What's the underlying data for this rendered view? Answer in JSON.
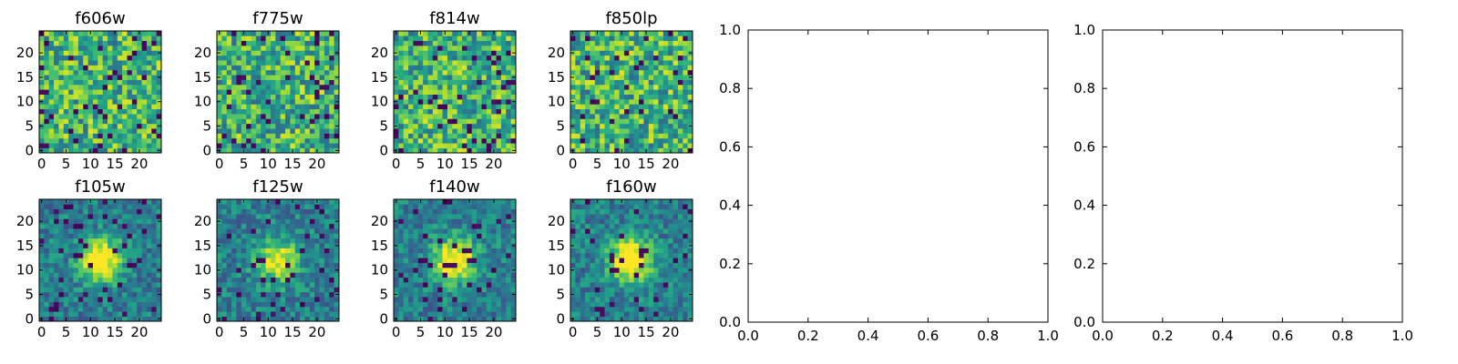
{
  "figure": {
    "colormap": "viridis",
    "colors": {
      "low": "#440154",
      "mid": "#21918c",
      "high": "#fde725",
      "axes_frame": "#000000",
      "background": "#ffffff"
    }
  },
  "chart_data": [
    {
      "type": "heatmap",
      "title": "f606w",
      "image_size": 25,
      "xticks": [
        "0",
        "5",
        "10",
        "15",
        "20"
      ],
      "yticks": [
        "0",
        "5",
        "10",
        "15",
        "20"
      ],
      "center_peak": 0.0,
      "noise_seed": 11
    },
    {
      "type": "heatmap",
      "title": "f775w",
      "image_size": 25,
      "xticks": [
        "0",
        "5",
        "10",
        "15",
        "20"
      ],
      "yticks": [
        "0",
        "5",
        "10",
        "15",
        "20"
      ],
      "center_peak": 0.0,
      "noise_seed": 23
    },
    {
      "type": "heatmap",
      "title": "f814w",
      "image_size": 25,
      "xticks": [
        "0",
        "5",
        "10",
        "15",
        "20"
      ],
      "yticks": [
        "0",
        "5",
        "10",
        "15",
        "20"
      ],
      "center_peak": 0.0,
      "noise_seed": 37
    },
    {
      "type": "heatmap",
      "title": "f850lp",
      "image_size": 25,
      "xticks": [
        "0",
        "5",
        "10",
        "15",
        "20"
      ],
      "yticks": [
        "0",
        "5",
        "10",
        "15",
        "20"
      ],
      "center_peak": 0.0,
      "noise_seed": 41
    },
    {
      "type": "heatmap",
      "title": "f105w",
      "image_size": 25,
      "xticks": [
        "0",
        "5",
        "10",
        "15",
        "20"
      ],
      "yticks": [
        "0",
        "5",
        "10",
        "15",
        "20"
      ],
      "center_peak": 0.7,
      "noise_seed": 53
    },
    {
      "type": "heatmap",
      "title": "f125w",
      "image_size": 25,
      "xticks": [
        "0",
        "5",
        "10",
        "15",
        "20"
      ],
      "yticks": [
        "0",
        "5",
        "10",
        "15",
        "20"
      ],
      "center_peak": 0.6,
      "noise_seed": 67
    },
    {
      "type": "heatmap",
      "title": "f140w",
      "image_size": 25,
      "xticks": [
        "0",
        "5",
        "10",
        "15",
        "20"
      ],
      "yticks": [
        "0",
        "5",
        "10",
        "15",
        "20"
      ],
      "center_peak": 0.7,
      "noise_seed": 71
    },
    {
      "type": "heatmap",
      "title": "f160w",
      "image_size": 25,
      "xticks": [
        "0",
        "5",
        "10",
        "15",
        "20"
      ],
      "yticks": [
        "0",
        "5",
        "10",
        "15",
        "20"
      ],
      "center_peak": 0.8,
      "noise_seed": 89
    },
    {
      "type": "empty",
      "title": "",
      "xlim": [
        0.0,
        1.0
      ],
      "ylim": [
        0.0,
        1.0
      ],
      "xticks": [
        "0.0",
        "0.2",
        "0.4",
        "0.6",
        "0.8",
        "1.0"
      ],
      "yticks": [
        "0.0",
        "0.2",
        "0.4",
        "0.6",
        "0.8",
        "1.0"
      ]
    },
    {
      "type": "empty",
      "title": "",
      "xlim": [
        0.0,
        1.0
      ],
      "ylim": [
        0.0,
        1.0
      ],
      "xticks": [
        "0.0",
        "0.2",
        "0.4",
        "0.6",
        "0.8",
        "1.0"
      ],
      "yticks": [
        "0.0",
        "0.2",
        "0.4",
        "0.6",
        "0.8",
        "1.0"
      ]
    }
  ]
}
